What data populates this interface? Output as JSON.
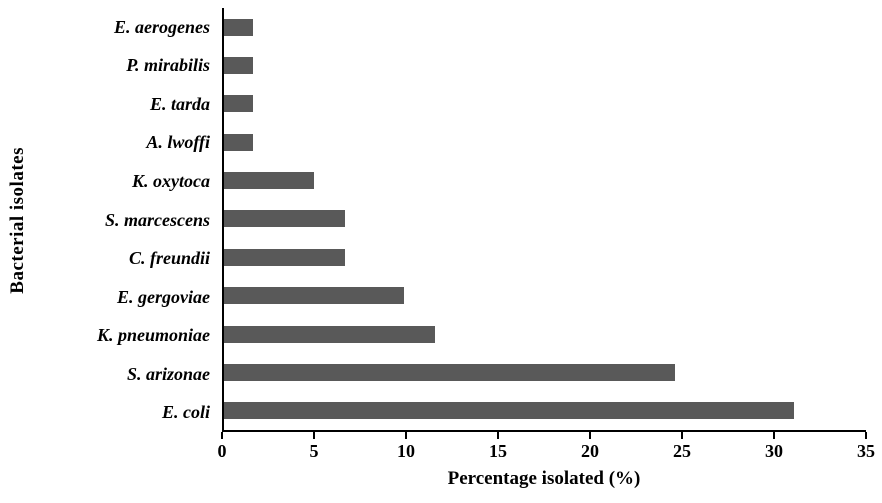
{
  "chart_data": {
    "type": "bar",
    "orientation": "horizontal",
    "title": "",
    "xlabel": "Percentage isolated (%)",
    "ylabel": "Bacterial isolates",
    "categories": [
      "E. aerogenes",
      "P. mirabilis",
      "E. tarda",
      "A. lwoffi",
      "K. oxytoca",
      "S. marcescens",
      "C. freundii",
      "E. gergoviae",
      "K. pneumoniae",
      "S. arizonae",
      "E. coli"
    ],
    "values": [
      1.6,
      1.6,
      1.6,
      1.6,
      4.9,
      6.6,
      6.6,
      9.8,
      11.5,
      24.6,
      31.1
    ],
    "xlim": [
      0,
      35
    ],
    "xticks": [
      0,
      5,
      10,
      15,
      20,
      25,
      30,
      35
    ],
    "bar_color": "#595959",
    "axis_color": "#000000",
    "grid": false,
    "legend": "none"
  }
}
